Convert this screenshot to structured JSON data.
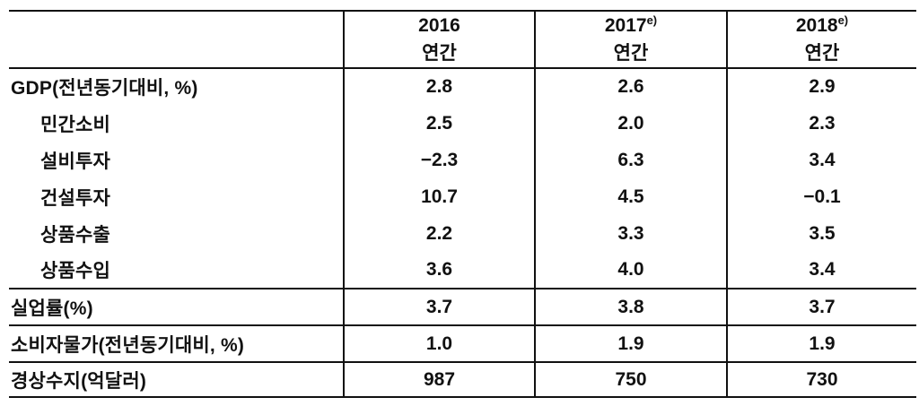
{
  "table": {
    "title": "economic-indicators-annual-table",
    "colors": {
      "text": "#111111",
      "border": "#111111",
      "background": "#ffffff"
    },
    "columns": [
      {
        "label": ""
      },
      {
        "year": "2016",
        "sup": "",
        "period": "연간"
      },
      {
        "year": "2017",
        "sup": "e)",
        "period": "연간"
      },
      {
        "year": "2018",
        "sup": "e)",
        "period": "연간"
      }
    ],
    "rows": [
      {
        "label": "GDP(전년동기대비, %)",
        "values": [
          "2.8",
          "2.6",
          "2.9"
        ]
      },
      {
        "label": "민간소비",
        "values": [
          "2.5",
          "2.0",
          "2.3"
        ]
      },
      {
        "label": "설비투자",
        "values": [
          "−2.3",
          "6.3",
          "3.4"
        ]
      },
      {
        "label": "건설투자",
        "values": [
          "10.7",
          "4.5",
          "−0.1"
        ]
      },
      {
        "label": "상품수출",
        "values": [
          "2.2",
          "3.3",
          "3.5"
        ]
      },
      {
        "label": "상품수입",
        "values": [
          "3.6",
          "4.0",
          "3.4"
        ]
      },
      {
        "label": "실업률(%)",
        "values": [
          "3.7",
          "3.8",
          "3.7"
        ]
      },
      {
        "label": "소비자물가(전년동기대비, %)",
        "values": [
          "1.0",
          "1.9",
          "1.9"
        ]
      },
      {
        "label": "경상수지(억달러)",
        "values": [
          "987",
          "750",
          "730"
        ]
      }
    ]
  }
}
